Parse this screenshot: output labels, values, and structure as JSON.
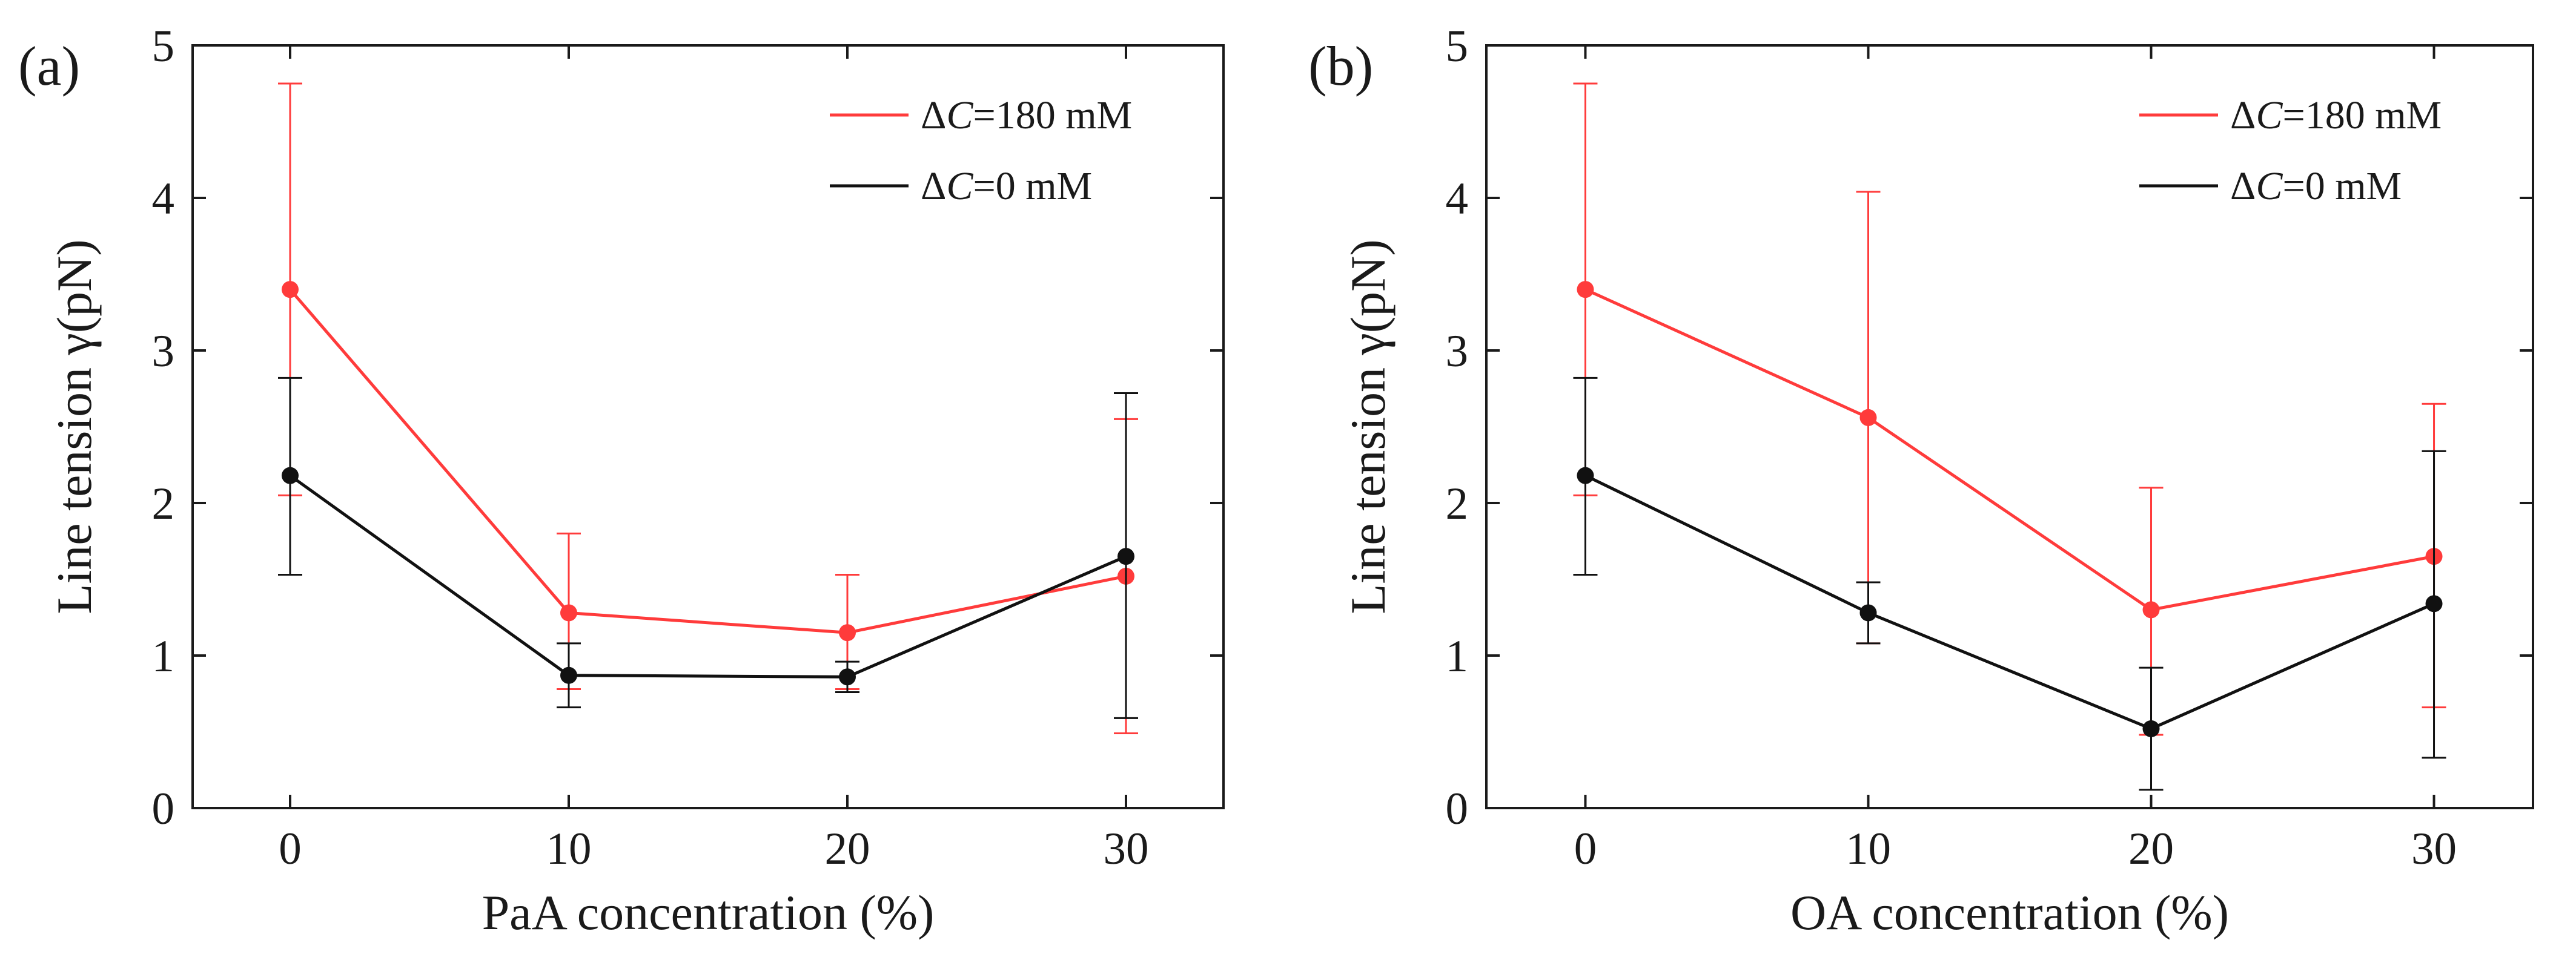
{
  "chart_data": [
    {
      "type": "line",
      "panel_label": "(a)",
      "xlabel": "PaA concentration (%)",
      "ylabel": "Line tension γ(pN)",
      "x": [
        0,
        10,
        20,
        30
      ],
      "xlim": [
        -3.5,
        33.5
      ],
      "ylim": [
        0,
        5
      ],
      "xticks": [
        0,
        10,
        20,
        30
      ],
      "yticks": [
        0,
        1,
        2,
        3,
        4,
        5
      ],
      "legend_position": "top-right",
      "series": [
        {
          "name": "ΔC=180 mM",
          "legend": {
            "delta": "Δ",
            "var": "C",
            "rest": "=180 mM"
          },
          "color": "#ff3b3b",
          "values": [
            3.4,
            1.28,
            1.15,
            1.52
          ],
          "err_low": [
            2.05,
            0.78,
            0.78,
            0.49
          ],
          "err_high": [
            4.75,
            1.8,
            1.53,
            2.55
          ]
        },
        {
          "name": "ΔC=0 mM",
          "legend": {
            "delta": "Δ",
            "var": "C",
            "rest": "=0 mM"
          },
          "color": "#111111",
          "values": [
            2.18,
            0.87,
            0.86,
            1.65
          ],
          "err_low": [
            1.53,
            0.66,
            0.76,
            0.59
          ],
          "err_high": [
            2.82,
            1.08,
            0.96,
            2.72
          ]
        }
      ]
    },
    {
      "type": "line",
      "panel_label": "(b)",
      "xlabel": "OA concentration (%)",
      "ylabel": "Line tension γ(pN)",
      "x": [
        0,
        10,
        20,
        30
      ],
      "xlim": [
        -3.5,
        33.5
      ],
      "ylim": [
        0,
        5
      ],
      "xticks": [
        0,
        10,
        20,
        30
      ],
      "yticks": [
        0,
        1,
        2,
        3,
        4,
        5
      ],
      "legend_position": "top-right",
      "series": [
        {
          "name": "ΔC=180 mM",
          "legend": {
            "delta": "Δ",
            "var": "C",
            "rest": "=180 mM"
          },
          "color": "#ff3b3b",
          "values": [
            3.4,
            2.56,
            1.3,
            1.65
          ],
          "err_low": [
            2.05,
            1.08,
            0.48,
            0.66
          ],
          "err_high": [
            4.75,
            4.04,
            2.1,
            2.65
          ]
        },
        {
          "name": "ΔC=0 mM",
          "legend": {
            "delta": "Δ",
            "var": "C",
            "rest": "=0 mM"
          },
          "color": "#111111",
          "values": [
            2.18,
            1.28,
            0.52,
            1.34
          ],
          "err_low": [
            1.53,
            1.08,
            0.12,
            0.33
          ],
          "err_high": [
            2.82,
            1.48,
            0.92,
            2.34
          ]
        }
      ]
    }
  ]
}
